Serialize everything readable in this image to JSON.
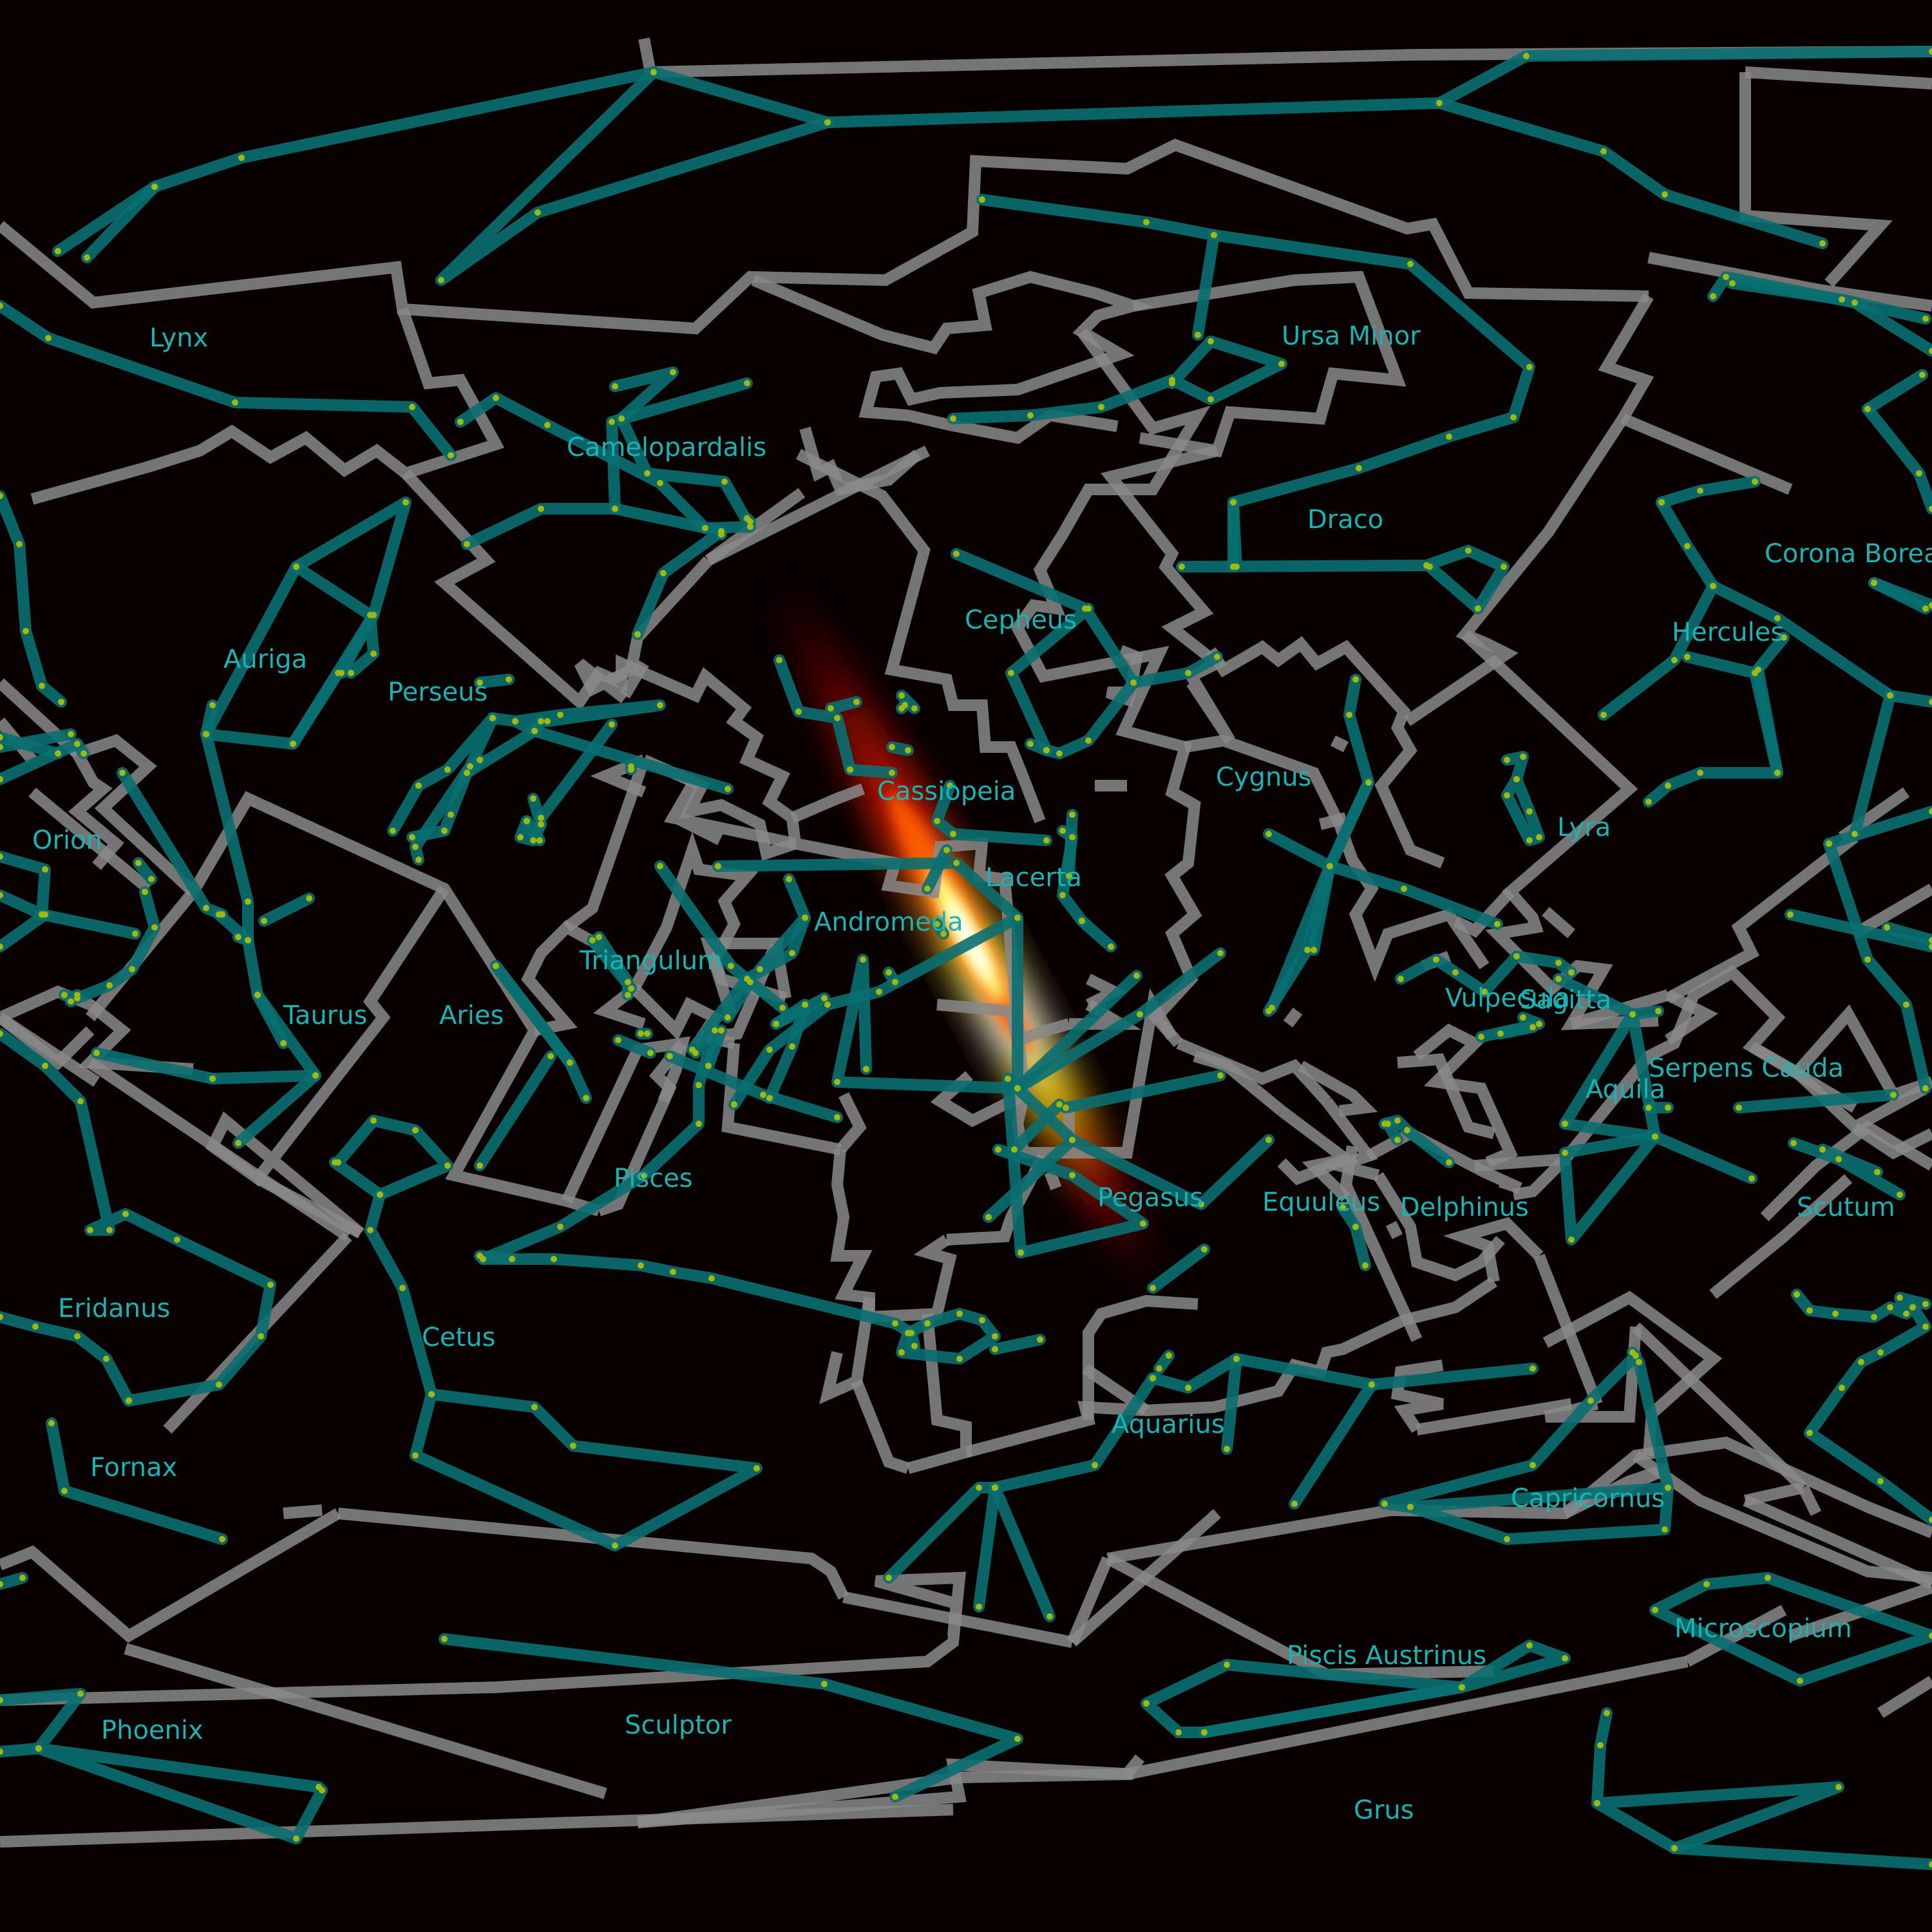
{
  "map": {
    "background_color": "#080000",
    "boundary_color": "#8a8a8a",
    "figure_color": "#0a6f70",
    "star_color": "#9fb80a",
    "label_color": "#1ab3b3",
    "highlight_colors": [
      "#ff0000",
      "#ffff00",
      "#ffffff"
    ],
    "constellations": [
      {
        "name": "Lynx"
      },
      {
        "name": "Camelopardalis"
      },
      {
        "name": "Ursa Minor"
      },
      {
        "name": "Draco"
      },
      {
        "name": "Corona Borealis"
      },
      {
        "name": "Auriga"
      },
      {
        "name": "Perseus"
      },
      {
        "name": "Cepheus"
      },
      {
        "name": "Hercules"
      },
      {
        "name": "Cassiopeia"
      },
      {
        "name": "Cygnus"
      },
      {
        "name": "Lyra"
      },
      {
        "name": "Orion"
      },
      {
        "name": "Lacerta"
      },
      {
        "name": "Andromeda"
      },
      {
        "name": "Triangulum"
      },
      {
        "name": "Vulpecula"
      },
      {
        "name": "Sagitta"
      },
      {
        "name": "Taurus"
      },
      {
        "name": "Aries"
      },
      {
        "name": "Serpens Cauda"
      },
      {
        "name": "Aquila"
      },
      {
        "name": "Pisces"
      },
      {
        "name": "Pegasus"
      },
      {
        "name": "Equuleus"
      },
      {
        "name": "Delphinus"
      },
      {
        "name": "Scutum"
      },
      {
        "name": "Eridanus"
      },
      {
        "name": "Cetus"
      },
      {
        "name": "Aquarius"
      },
      {
        "name": "Fornax"
      },
      {
        "name": "Capricornus"
      },
      {
        "name": "Microscopium"
      },
      {
        "name": "Piscis Austrinus"
      },
      {
        "name": "Phoenix"
      },
      {
        "name": "Sculptor"
      },
      {
        "name": "Grus"
      }
    ]
  }
}
